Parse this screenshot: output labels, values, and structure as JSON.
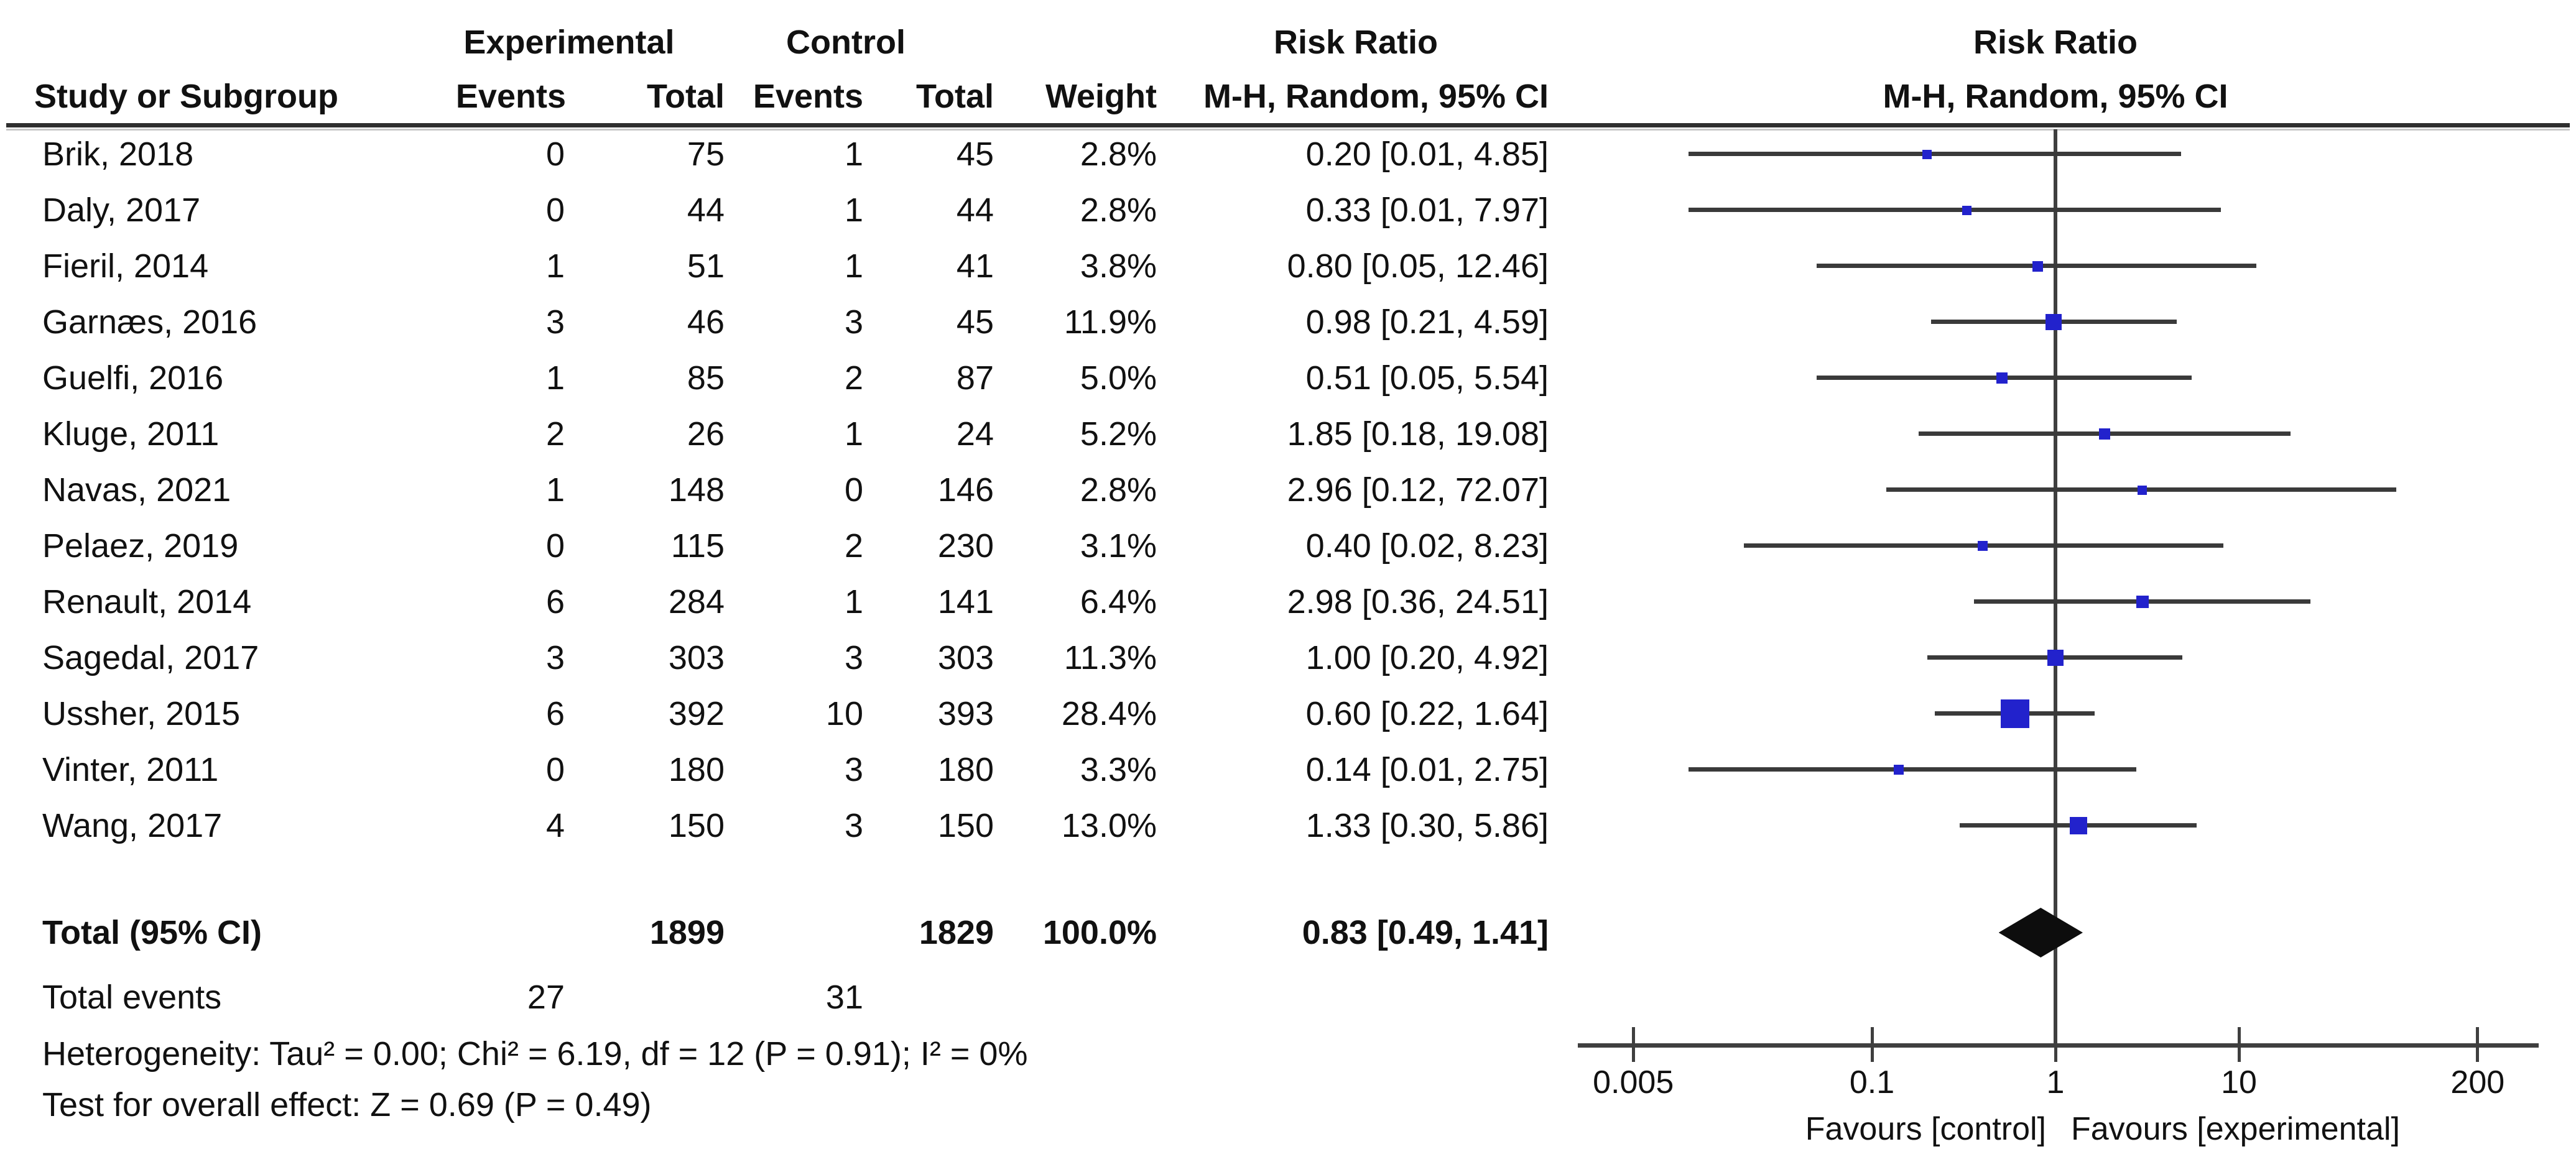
{
  "title_columns": {
    "study": "Study or Subgroup",
    "events": "Events",
    "total": "Total",
    "weight": "Weight",
    "group_experimental": "Experimental",
    "group_control": "Control",
    "risk_ratio": "Risk Ratio",
    "method_ci": "M-H, Random, 95% CI"
  },
  "footer": {
    "total_events_label": "Total events",
    "heterogeneity": "Heterogeneity: Tau² = 0.00; Chi² = 6.19, df = 12 (P = 0.91); I² = 0%",
    "overall_effect": "Test for overall effect: Z = 0.69 (P = 0.49)"
  },
  "colors": {
    "marker": "#2222cc",
    "ci_line": "#3a3a3a",
    "diamond": "#0d0d0d",
    "axis": "#3f3f3f"
  },
  "chart_data": {
    "type": "forest",
    "effect_measure": "Risk Ratio",
    "model": "M-H, Random, 95% CI",
    "x_scale": "log",
    "axis": {
      "ticks": [
        "0.005",
        "0.1",
        "1",
        "10",
        "200"
      ],
      "favours_left": "Favours [control]",
      "favours_right": "Favours [experimental]"
    },
    "studies": [
      {
        "study": "Brik, 2018",
        "exp_events": "0",
        "exp_total": "75",
        "ctrl_events": "1",
        "ctrl_total": "45",
        "weight": "2.8%",
        "weight_pct": 2.8,
        "rr": 0.2,
        "ci_low": 0.01,
        "ci_high": 4.85,
        "ci_label": "0.20 [0.01, 4.85]"
      },
      {
        "study": "Daly, 2017",
        "exp_events": "0",
        "exp_total": "44",
        "ctrl_events": "1",
        "ctrl_total": "44",
        "weight": "2.8%",
        "weight_pct": 2.8,
        "rr": 0.33,
        "ci_low": 0.01,
        "ci_high": 7.97,
        "ci_label": "0.33 [0.01, 7.97]"
      },
      {
        "study": "Fieril, 2014",
        "exp_events": "1",
        "exp_total": "51",
        "ctrl_events": "1",
        "ctrl_total": "41",
        "weight": "3.8%",
        "weight_pct": 3.8,
        "rr": 0.8,
        "ci_low": 0.05,
        "ci_high": 12.46,
        "ci_label": "0.80 [0.05, 12.46]"
      },
      {
        "study": "Garnæs, 2016",
        "exp_events": "3",
        "exp_total": "46",
        "ctrl_events": "3",
        "ctrl_total": "45",
        "weight": "11.9%",
        "weight_pct": 11.9,
        "rr": 0.98,
        "ci_low": 0.21,
        "ci_high": 4.59,
        "ci_label": "0.98 [0.21, 4.59]"
      },
      {
        "study": "Guelfi, 2016",
        "exp_events": "1",
        "exp_total": "85",
        "ctrl_events": "2",
        "ctrl_total": "87",
        "weight": "5.0%",
        "weight_pct": 5.0,
        "rr": 0.51,
        "ci_low": 0.05,
        "ci_high": 5.54,
        "ci_label": "0.51 [0.05, 5.54]"
      },
      {
        "study": "Kluge, 2011",
        "exp_events": "2",
        "exp_total": "26",
        "ctrl_events": "1",
        "ctrl_total": "24",
        "weight": "5.2%",
        "weight_pct": 5.2,
        "rr": 1.85,
        "ci_low": 0.18,
        "ci_high": 19.08,
        "ci_label": "1.85 [0.18, 19.08]"
      },
      {
        "study": "Navas, 2021",
        "exp_events": "1",
        "exp_total": "148",
        "ctrl_events": "0",
        "ctrl_total": "146",
        "weight": "2.8%",
        "weight_pct": 2.8,
        "rr": 2.96,
        "ci_low": 0.12,
        "ci_high": 72.07,
        "ci_label": "2.96 [0.12, 72.07]"
      },
      {
        "study": "Pelaez, 2019",
        "exp_events": "0",
        "exp_total": "115",
        "ctrl_events": "2",
        "ctrl_total": "230",
        "weight": "3.1%",
        "weight_pct": 3.1,
        "rr": 0.4,
        "ci_low": 0.02,
        "ci_high": 8.23,
        "ci_label": "0.40 [0.02, 8.23]"
      },
      {
        "study": "Renault, 2014",
        "exp_events": "6",
        "exp_total": "284",
        "ctrl_events": "1",
        "ctrl_total": "141",
        "weight": "6.4%",
        "weight_pct": 6.4,
        "rr": 2.98,
        "ci_low": 0.36,
        "ci_high": 24.51,
        "ci_label": "2.98 [0.36, 24.51]"
      },
      {
        "study": "Sagedal, 2017",
        "exp_events": "3",
        "exp_total": "303",
        "ctrl_events": "3",
        "ctrl_total": "303",
        "weight": "11.3%",
        "weight_pct": 11.3,
        "rr": 1.0,
        "ci_low": 0.2,
        "ci_high": 4.92,
        "ci_label": "1.00 [0.20, 4.92]"
      },
      {
        "study": "Ussher, 2015",
        "exp_events": "6",
        "exp_total": "392",
        "ctrl_events": "10",
        "ctrl_total": "393",
        "weight": "28.4%",
        "weight_pct": 28.4,
        "rr": 0.6,
        "ci_low": 0.22,
        "ci_high": 1.64,
        "ci_label": "0.60 [0.22, 1.64]"
      },
      {
        "study": "Vinter, 2011",
        "exp_events": "0",
        "exp_total": "180",
        "ctrl_events": "3",
        "ctrl_total": "180",
        "weight": "3.3%",
        "weight_pct": 3.3,
        "rr": 0.14,
        "ci_low": 0.01,
        "ci_high": 2.75,
        "ci_label": "0.14 [0.01, 2.75]"
      },
      {
        "study": "Wang, 2017",
        "exp_events": "4",
        "exp_total": "150",
        "ctrl_events": "3",
        "ctrl_total": "150",
        "weight": "13.0%",
        "weight_pct": 13.0,
        "rr": 1.33,
        "ci_low": 0.3,
        "ci_high": 5.86,
        "ci_label": "1.33 [0.30, 5.86]"
      }
    ],
    "total": {
      "label": "Total (95% CI)",
      "exp_total": "1899",
      "ctrl_total": "1829",
      "weight": "100.0%",
      "rr": 0.83,
      "ci_low": 0.49,
      "ci_high": 1.41,
      "ci_label": "0.83 [0.49, 1.41]",
      "exp_events": "27",
      "ctrl_events": "31"
    }
  }
}
